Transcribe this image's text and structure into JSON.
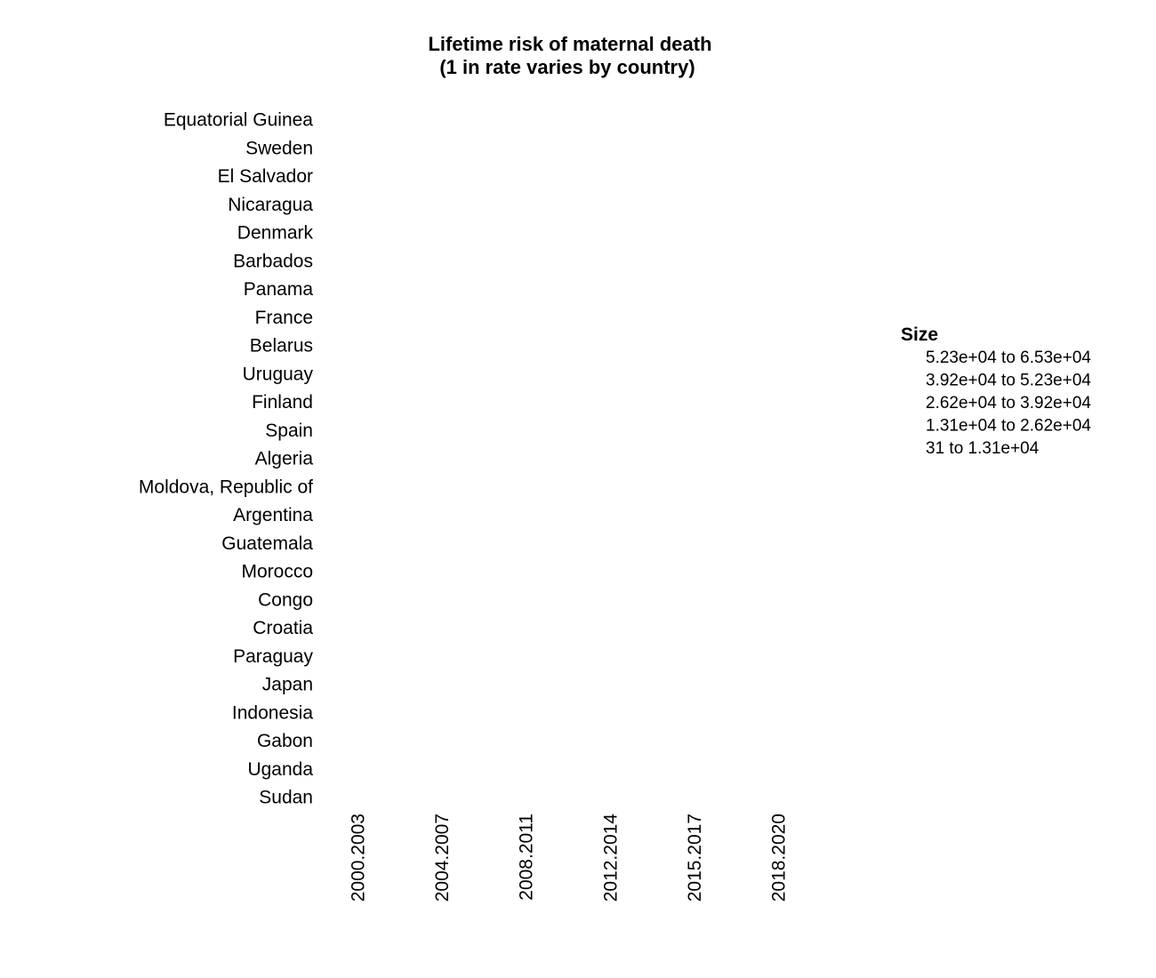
{
  "chart_data": {
    "type": "scatter",
    "title": "Lifetime risk of maternal death",
    "subtitle": "(1 in rate varies by country)",
    "categories_y": [
      "Equatorial Guinea",
      "Sweden",
      "El Salvador",
      "Nicaragua",
      "Denmark",
      "Barbados",
      "Panama",
      "France",
      "Belarus",
      "Uruguay",
      "Finland",
      "Spain",
      "Algeria",
      "Moldova, Republic of",
      "Argentina",
      "Guatemala",
      "Morocco",
      "Congo",
      "Croatia",
      "Paraguay",
      "Japan",
      "Indonesia",
      "Gabon",
      "Uganda",
      "Sudan"
    ],
    "categories_x": [
      "2000.2003",
      "2004.2007",
      "2008.2011",
      "2012.2014",
      "2015.2017",
      "2018.2020"
    ],
    "legend": {
      "title": "Size",
      "placement": "right",
      "items": [
        "5.23e+04 to 6.53e+04",
        "3.92e+04 to 5.23e+04",
        "2.62e+04 to 3.92e+04",
        "1.31e+04 to 2.62e+04",
        "31 to 1.31e+04"
      ]
    },
    "grid": false,
    "points": []
  }
}
